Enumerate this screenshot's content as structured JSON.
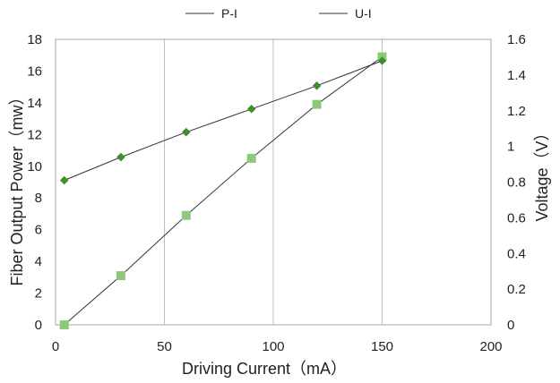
{
  "chart_data": {
    "type": "line",
    "legend": {
      "position": "top",
      "entries": [
        "P-I",
        "U-I"
      ]
    },
    "x_axis": {
      "label": "Driving Current（mA）",
      "range": [
        0,
        200
      ],
      "ticks": [
        0,
        50,
        100,
        150,
        200
      ]
    },
    "y_axis_left": {
      "label": "Fiber Output Power（mw）",
      "range": [
        0,
        18
      ],
      "ticks": [
        0,
        2,
        4,
        6,
        8,
        10,
        12,
        14,
        16,
        18
      ]
    },
    "y_axis_right": {
      "label": "Voltage（V）",
      "range": [
        0,
        1.6
      ],
      "ticks": [
        "0",
        "0.2",
        "0.4",
        "0.6",
        "0.8",
        "1",
        "1.2",
        "1.4",
        "1.6"
      ]
    },
    "grid": {
      "vertical": true,
      "horizontal": false
    },
    "series": [
      {
        "name": "P-I",
        "axis": "left",
        "marker": "square",
        "color": "#8dc97a",
        "line_color": "#333333",
        "x": [
          4,
          30,
          60,
          90,
          120,
          150
        ],
        "y": [
          0,
          3.1,
          6.9,
          10.5,
          13.9,
          16.9
        ]
      },
      {
        "name": "U-I",
        "axis": "right",
        "marker": "diamond",
        "color": "#3f8e2c",
        "line_color": "#333333",
        "x": [
          4,
          30,
          60,
          90,
          120,
          150
        ],
        "y": [
          0.81,
          0.94,
          1.08,
          1.21,
          1.34,
          1.48
        ]
      }
    ]
  }
}
